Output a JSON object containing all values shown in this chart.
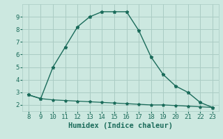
{
  "xlabel": "Humidex (Indice chaleur)",
  "background_color": "#cce8e0",
  "grid_color": "#aaccc4",
  "line_color": "#1a6b5a",
  "line1_x": [
    8,
    9,
    10,
    11,
    12,
    13,
    14,
    15,
    16,
    17,
    18,
    19,
    20,
    21,
    22,
    23
  ],
  "line1_y": [
    2.8,
    2.5,
    5.0,
    6.6,
    8.2,
    9.0,
    9.4,
    9.4,
    9.4,
    7.9,
    5.8,
    4.4,
    3.5,
    3.0,
    2.2,
    1.8
  ],
  "line2_x": [
    8,
    9,
    10,
    11,
    12,
    13,
    14,
    15,
    16,
    17,
    18,
    19,
    20,
    21,
    22,
    23
  ],
  "line2_y": [
    2.8,
    2.5,
    2.4,
    2.35,
    2.3,
    2.25,
    2.2,
    2.15,
    2.1,
    2.05,
    2.0,
    2.0,
    1.95,
    1.9,
    1.85,
    1.8
  ],
  "xlim": [
    7.5,
    23.5
  ],
  "ylim": [
    1.5,
    10.0
  ],
  "xticks": [
    8,
    9,
    10,
    11,
    12,
    13,
    14,
    15,
    16,
    17,
    18,
    19,
    20,
    21,
    22,
    23
  ],
  "yticks": [
    2,
    3,
    4,
    5,
    6,
    7,
    8,
    9
  ],
  "tick_fontsize": 6.5,
  "xlabel_fontsize": 7.5
}
